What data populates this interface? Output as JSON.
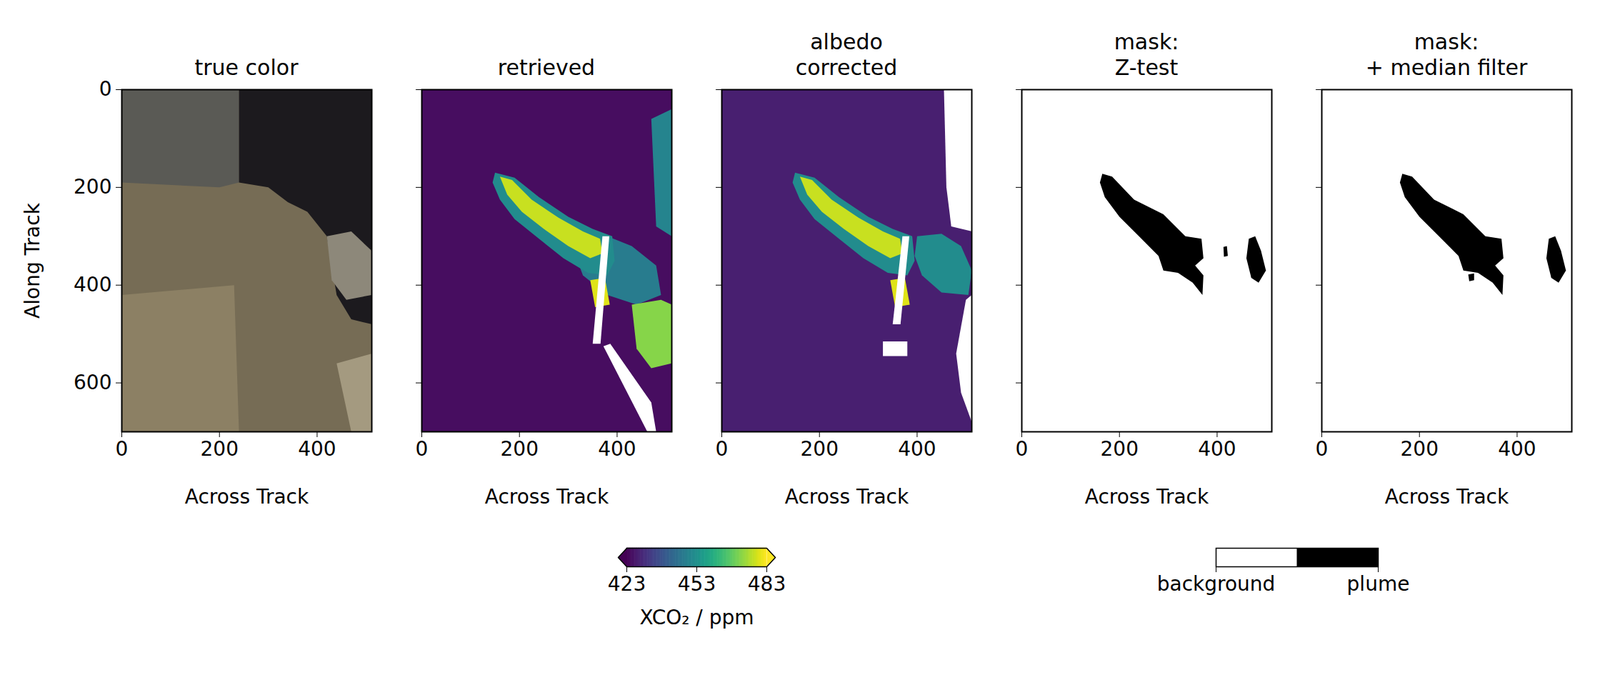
{
  "chart_data": [
    {
      "type": "image",
      "title": "true color",
      "xlabel": "Across Track",
      "ylabel": "Along Track",
      "xlim": [
        0,
        512
      ],
      "ylim": [
        700,
        0
      ],
      "xticks": [
        0,
        200,
        400
      ],
      "yticks": [
        0,
        200,
        400,
        600
      ],
      "regions": [
        {
          "color": "#766c55",
          "polygon": [
            [
              0,
              0
            ],
            [
              512,
              0
            ],
            [
              512,
              700
            ],
            [
              0,
              700
            ]
          ]
        },
        {
          "color": "#8c8064",
          "polygon": [
            [
              0,
              420
            ],
            [
              230,
              400
            ],
            [
              240,
              700
            ],
            [
              0,
              700
            ]
          ]
        },
        {
          "color": "#5a5a55",
          "polygon": [
            [
              0,
              0
            ],
            [
              240,
              0
            ],
            [
              240,
              190
            ],
            [
              200,
              200
            ],
            [
              0,
              190
            ]
          ]
        },
        {
          "color": "#1c1a1e",
          "polygon": [
            [
              240,
              0
            ],
            [
              512,
              0
            ],
            [
              512,
              480
            ],
            [
              470,
              470
            ],
            [
              440,
              420
            ],
            [
              420,
              300
            ],
            [
              380,
              250
            ],
            [
              340,
              230
            ],
            [
              300,
              200
            ],
            [
              240,
              190
            ]
          ]
        },
        {
          "color": "#8d887a",
          "polygon": [
            [
              420,
              300
            ],
            [
              470,
              290
            ],
            [
              512,
              330
            ],
            [
              512,
              420
            ],
            [
              460,
              430
            ],
            [
              430,
              390
            ]
          ]
        },
        {
          "color": "#a49a80",
          "polygon": [
            [
              440,
              560
            ],
            [
              512,
              540
            ],
            [
              512,
              700
            ],
            [
              470,
              700
            ]
          ]
        }
      ]
    },
    {
      "type": "heatmap",
      "title": "retrieved",
      "xlabel": "Across Track",
      "xlim": [
        0,
        512
      ],
      "ylim": [
        700,
        0
      ],
      "xticks": [
        0,
        200,
        400
      ],
      "yticks": [
        0,
        200,
        400,
        600
      ],
      "tick_labels": "x",
      "background": 425,
      "regions": [
        {
          "value": 450,
          "polygon": [
            [
              470,
              60
            ],
            [
              512,
              40
            ],
            [
              512,
              300
            ],
            [
              480,
              280
            ]
          ]
        },
        {
          "value": 448,
          "polygon": [
            [
              300,
              300
            ],
            [
              380,
              300
            ],
            [
              430,
              320
            ],
            [
              480,
              360
            ],
            [
              490,
              420
            ],
            [
              440,
              440
            ],
            [
              380,
              420
            ],
            [
              330,
              380
            ]
          ]
        },
        {
          "value": 452,
          "polygon": [
            [
              150,
              170
            ],
            [
              190,
              180
            ],
            [
              240,
              220
            ],
            [
              300,
              260
            ],
            [
              350,
              285
            ],
            [
              390,
              300
            ],
            [
              395,
              350
            ],
            [
              380,
              380
            ],
            [
              340,
              375
            ],
            [
              290,
              345
            ],
            [
              240,
              305
            ],
            [
              190,
              265
            ],
            [
              160,
              225
            ],
            [
              145,
              190
            ]
          ]
        },
        {
          "value": 478,
          "polygon": [
            [
              160,
              178
            ],
            [
              185,
              185
            ],
            [
              225,
              225
            ],
            [
              280,
              262
            ],
            [
              330,
              290
            ],
            [
              365,
              305
            ],
            [
              370,
              335
            ],
            [
              345,
              345
            ],
            [
              300,
              320
            ],
            [
              250,
              285
            ],
            [
              205,
              250
            ],
            [
              175,
              215
            ]
          ]
        },
        {
          "value": 480,
          "polygon": [
            [
              345,
              390
            ],
            [
              375,
              385
            ],
            [
              385,
              440
            ],
            [
              355,
              445
            ]
          ]
        },
        {
          "value": 472,
          "polygon": [
            [
              430,
              440
            ],
            [
              490,
              430
            ],
            [
              512,
              440
            ],
            [
              512,
              560
            ],
            [
              470,
              570
            ],
            [
              440,
              530
            ]
          ]
        }
      ],
      "missing": [
        [
          [
            370,
            300
          ],
          [
            384,
            300
          ],
          [
            366,
            520
          ],
          [
            350,
            520
          ]
        ],
        [
          [
            372,
            525
          ],
          [
            386,
            520
          ],
          [
            470,
            640
          ],
          [
            480,
            700
          ],
          [
            462,
            700
          ]
        ]
      ]
    },
    {
      "type": "heatmap",
      "title": "albedo\ncorrected",
      "xlabel": "Across Track",
      "xlim": [
        0,
        512
      ],
      "ylim": [
        700,
        0
      ],
      "xticks": [
        0,
        200,
        400
      ],
      "yticks": [
        0,
        200,
        400,
        600
      ],
      "tick_labels": "x",
      "background": 428,
      "regions": [
        {
          "value": 452,
          "polygon": [
            [
              150,
              170
            ],
            [
              190,
              180
            ],
            [
              240,
              220
            ],
            [
              300,
              260
            ],
            [
              350,
              285
            ],
            [
              390,
              300
            ],
            [
              395,
              350
            ],
            [
              380,
              380
            ],
            [
              340,
              375
            ],
            [
              290,
              345
            ],
            [
              240,
              305
            ],
            [
              190,
              265
            ],
            [
              160,
              225
            ],
            [
              145,
              190
            ]
          ]
        },
        {
          "value": 478,
          "polygon": [
            [
              160,
              178
            ],
            [
              185,
              185
            ],
            [
              225,
              225
            ],
            [
              280,
              262
            ],
            [
              330,
              290
            ],
            [
              365,
              305
            ],
            [
              370,
              335
            ],
            [
              345,
              345
            ],
            [
              300,
              320
            ],
            [
              250,
              285
            ],
            [
              205,
              250
            ],
            [
              175,
              215
            ]
          ]
        },
        {
          "value": 452,
          "polygon": [
            [
              400,
              300
            ],
            [
              450,
              295
            ],
            [
              490,
              320
            ],
            [
              512,
              370
            ],
            [
              505,
              420
            ],
            [
              450,
              415
            ],
            [
              410,
              380
            ],
            [
              395,
              340
            ]
          ]
        },
        {
          "value": 480,
          "polygon": [
            [
              345,
              390
            ],
            [
              375,
              385
            ],
            [
              385,
              440
            ],
            [
              355,
              445
            ]
          ]
        }
      ],
      "missing": [
        [
          [
            455,
            0
          ],
          [
            512,
            0
          ],
          [
            512,
            290
          ],
          [
            470,
            280
          ],
          [
            460,
            200
          ]
        ],
        [
          [
            512,
            420
          ],
          [
            512,
            680
          ],
          [
            490,
            620
          ],
          [
            480,
            540
          ],
          [
            500,
            430
          ]
        ],
        [
          [
            370,
            300
          ],
          [
            384,
            300
          ],
          [
            366,
            480
          ],
          [
            350,
            480
          ]
        ],
        [
          [
            330,
            515
          ],
          [
            380,
            515
          ],
          [
            380,
            545
          ],
          [
            330,
            545
          ]
        ]
      ]
    },
    {
      "type": "mask",
      "title": "mask:\nZ-test",
      "xlabel": "Across Track",
      "xlim": [
        0,
        512
      ],
      "ylim": [
        700,
        0
      ],
      "xticks": [
        0,
        200,
        400
      ],
      "yticks": [
        0,
        200,
        400,
        600
      ],
      "tick_labels": "x",
      "color": "#000000",
      "regions": [
        {
          "polygon": [
            [
              165,
              172
            ],
            [
              185,
              178
            ],
            [
              230,
              225
            ],
            [
              290,
              255
            ],
            [
              335,
              300
            ],
            [
              368,
              305
            ],
            [
              372,
              345
            ],
            [
              355,
              360
            ],
            [
              372,
              380
            ],
            [
              370,
              420
            ],
            [
              350,
              395
            ],
            [
              320,
              375
            ],
            [
              290,
              370
            ],
            [
              280,
              340
            ],
            [
              240,
              300
            ],
            [
              200,
              260
            ],
            [
              170,
              220
            ],
            [
              160,
              190
            ]
          ]
        },
        {
          "polygon": [
            [
              465,
              305
            ],
            [
              478,
              300
            ],
            [
              490,
              330
            ],
            [
              500,
              370
            ],
            [
              485,
              395
            ],
            [
              470,
              385
            ],
            [
              460,
              345
            ]
          ]
        },
        {
          "polygon": [
            [
              413,
              322
            ],
            [
              420,
              320
            ],
            [
              422,
              340
            ],
            [
              414,
              342
            ]
          ]
        }
      ]
    },
    {
      "type": "mask",
      "title": "mask:\n+ median filter",
      "xlabel": "Across Track",
      "xlim": [
        0,
        512
      ],
      "ylim": [
        700,
        0
      ],
      "xticks": [
        0,
        200,
        400
      ],
      "yticks": [
        0,
        200,
        400,
        600
      ],
      "tick_labels": "x",
      "color": "#000000",
      "regions": [
        {
          "polygon": [
            [
              165,
              172
            ],
            [
              185,
              178
            ],
            [
              230,
              225
            ],
            [
              290,
              255
            ],
            [
              335,
              300
            ],
            [
              368,
              305
            ],
            [
              372,
              345
            ],
            [
              355,
              360
            ],
            [
              372,
              380
            ],
            [
              370,
              420
            ],
            [
              350,
              395
            ],
            [
              320,
              375
            ],
            [
              290,
              370
            ],
            [
              280,
              340
            ],
            [
              240,
              300
            ],
            [
              200,
              260
            ],
            [
              170,
              220
            ],
            [
              160,
              190
            ]
          ]
        },
        {
          "polygon": [
            [
              465,
              305
            ],
            [
              478,
              300
            ],
            [
              490,
              330
            ],
            [
              500,
              370
            ],
            [
              485,
              395
            ],
            [
              470,
              385
            ],
            [
              460,
              345
            ]
          ]
        },
        {
          "polygon": [
            [
              300,
              378
            ],
            [
              312,
              376
            ],
            [
              312,
              390
            ],
            [
              302,
              392
            ]
          ]
        }
      ]
    },
    {
      "type": "colorbar",
      "label": "XCO₂ / ppm",
      "range": [
        423,
        483
      ],
      "ticks": [
        423,
        453,
        483
      ],
      "color": "viridis"
    },
    {
      "type": "legend",
      "categories": [
        "background",
        "plume"
      ],
      "colors": [
        "#ffffff",
        "#000000"
      ]
    }
  ]
}
